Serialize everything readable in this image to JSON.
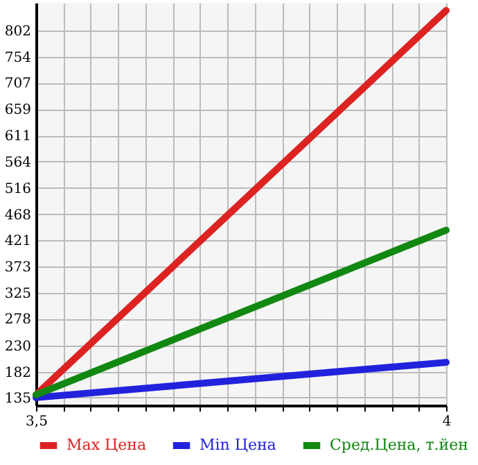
{
  "chart_data": {
    "type": "line",
    "x": [
      3.5,
      4
    ],
    "series": [
      {
        "name": "Max Цена",
        "color": "#dd2222",
        "values": [
          140,
          838
        ]
      },
      {
        "name": "Min Цена",
        "color": "#2222dd",
        "values": [
          135,
          199
        ]
      },
      {
        "name": "Сред.Цена, т.йен",
        "color": "#118811",
        "values": [
          140,
          439
        ]
      }
    ],
    "xlim": [
      3.5,
      4
    ],
    "xticks": [
      {
        "value": 3.5,
        "label": "3,5"
      },
      {
        "value": 3.5333,
        "label": null
      },
      {
        "value": 3.5667,
        "label": null
      },
      {
        "value": 3.6,
        "label": null
      },
      {
        "value": 3.6333,
        "label": null
      },
      {
        "value": 3.6667,
        "label": null
      },
      {
        "value": 3.7,
        "label": null
      },
      {
        "value": 3.7333,
        "label": null
      },
      {
        "value": 3.7667,
        "label": null
      },
      {
        "value": 3.8,
        "label": null
      },
      {
        "value": 3.8333,
        "label": null
      },
      {
        "value": 3.8667,
        "label": null
      },
      {
        "value": 3.9,
        "label": null
      },
      {
        "value": 3.9333,
        "label": null
      },
      {
        "value": 3.9667,
        "label": null
      },
      {
        "value": 4,
        "label": "4"
      }
    ],
    "ylim": [
      121,
      852
    ],
    "yticks": [
      135,
      182,
      230,
      278,
      325,
      373,
      421,
      468,
      516,
      564,
      611,
      659,
      707,
      754,
      802
    ],
    "grid": true,
    "legend": "bottom",
    "marker": "none",
    "line_style": "solid"
  }
}
